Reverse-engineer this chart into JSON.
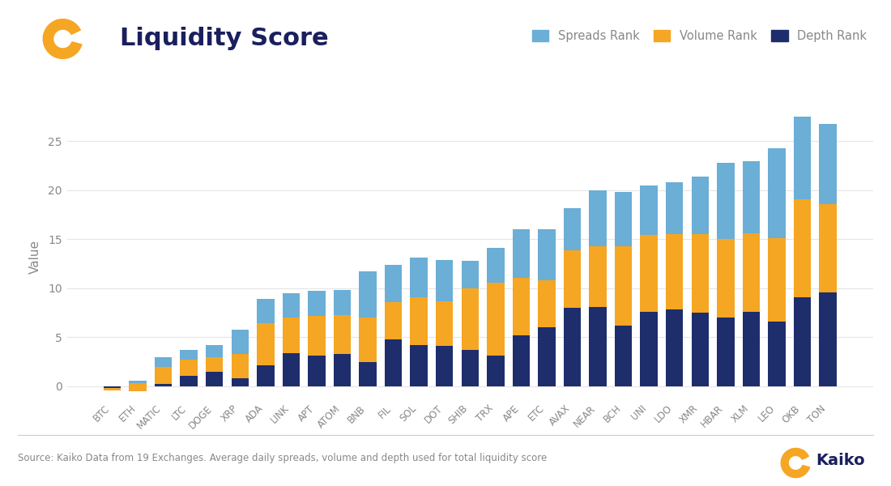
{
  "categories": [
    "BTC",
    "ETH",
    "MATIC",
    "LTC",
    "DOGE",
    "XRP",
    "ADA",
    "LINK",
    "APT",
    "ATOM",
    "BNB",
    "FIL",
    "SOL",
    "DOT",
    "SHIB",
    "TRX",
    "APE",
    "ETC",
    "AVAX",
    "NEAR",
    "BCH",
    "UNI",
    "LDO",
    "XMR",
    "HBAR",
    "XLM",
    "LEO",
    "OKB",
    "TON"
  ],
  "depth": [
    -0.4,
    -0.5,
    0.2,
    1.1,
    1.5,
    0.8,
    2.1,
    3.4,
    3.1,
    3.3,
    2.5,
    4.8,
    4.2,
    4.1,
    3.7,
    3.1,
    5.2,
    6.0,
    8.0,
    8.1,
    6.2,
    7.6,
    7.8,
    7.5,
    7.0,
    7.6,
    6.6,
    9.1,
    9.6
  ],
  "volume": [
    0.2,
    0.8,
    1.8,
    1.6,
    1.5,
    2.5,
    4.3,
    3.6,
    4.1,
    4.0,
    4.5,
    3.8,
    4.9,
    4.6,
    6.3,
    7.5,
    5.9,
    4.8,
    5.9,
    6.2,
    8.1,
    7.8,
    7.7,
    8.0,
    8.0,
    8.0,
    8.5,
    10.0,
    9.0
  ],
  "spreads": [
    0.05,
    0.3,
    1.0,
    1.0,
    1.2,
    2.5,
    2.5,
    2.5,
    2.5,
    2.5,
    4.7,
    3.8,
    4.0,
    4.2,
    2.8,
    3.5,
    4.9,
    5.2,
    4.3,
    5.7,
    5.5,
    5.1,
    5.3,
    5.9,
    7.8,
    7.4,
    9.2,
    8.4,
    8.2
  ],
  "spreads_color": "#6BAED6",
  "volume_color": "#F5A623",
  "depth_color": "#1E2D6B",
  "title": "Liquidity Score",
  "ylabel": "Value",
  "source_text": "Source: Kaiko Data from 19 Exchanges. Average daily spreads, volume and depth used for total liquidity score",
  "background_color": "#FFFFFF",
  "grid_color": "#E5E5E5",
  "title_color": "#1A1F5E",
  "text_color": "#888888",
  "legend_labels": [
    "Spreads Rank",
    "Volume Rank",
    "Depth Rank"
  ],
  "yticks": [
    0,
    5,
    10,
    15,
    20,
    25
  ],
  "ylim_min": -1.5,
  "ylim_max": 28.0,
  "bar_width": 0.68
}
